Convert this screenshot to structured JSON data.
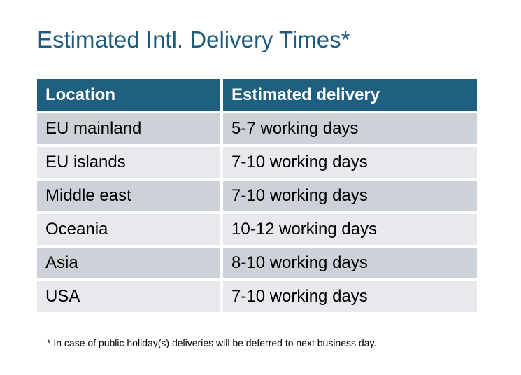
{
  "title": "Estimated Intl. Delivery Times*",
  "table": {
    "headers": [
      "Location",
      "Estimated delivery"
    ],
    "rows": [
      [
        "EU mainland",
        "5-7 working days"
      ],
      [
        "EU islands",
        "7-10 working days"
      ],
      [
        "Middle east",
        "7-10 working days"
      ],
      [
        "Oceania",
        "10-12 working days"
      ],
      [
        "Asia",
        "8-10 working days"
      ],
      [
        "USA",
        "7-10 working days"
      ]
    ]
  },
  "footnote": "* In case of public holiday(s) deliveries will be deferred to next business day.",
  "colors": {
    "header_bg": "#1f5f80",
    "row_dark": "#cdd1d8",
    "row_light": "#e7e9ec",
    "title": "#1e5b7c"
  }
}
